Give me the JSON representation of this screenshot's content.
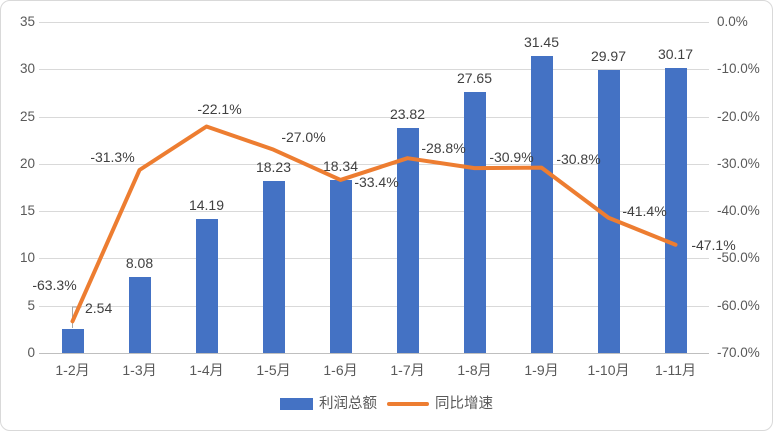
{
  "chart_data": {
    "type": "bar",
    "combo": "bar+line",
    "title": "",
    "categories": [
      "1-2月",
      "1-3月",
      "1-4月",
      "1-5月",
      "1-6月",
      "1-7月",
      "1-8月",
      "1-9月",
      "1-10月",
      "1-11月"
    ],
    "series": [
      {
        "name": "利润总额",
        "type": "bar",
        "axis": "left",
        "color": "#4472C4",
        "values": [
          2.54,
          8.08,
          14.19,
          18.23,
          18.34,
          23.82,
          27.65,
          31.45,
          29.97,
          30.17
        ],
        "labels": [
          "2.54",
          "8.08",
          "14.19",
          "18.23",
          "18.34",
          "23.82",
          "27.65",
          "31.45",
          "29.97",
          "30.17"
        ]
      },
      {
        "name": "同比增速",
        "type": "line",
        "axis": "right",
        "color": "#ED7D31",
        "values": [
          -63.3,
          -31.3,
          -22.1,
          -27.0,
          -33.4,
          -28.8,
          -30.9,
          -30.8,
          -41.4,
          -47.1
        ],
        "labels": [
          "-63.3%",
          "-31.3%",
          "-22.1%",
          "-27.0%",
          "-33.4%",
          "-28.8%",
          "-30.9%",
          "-30.8%",
          "-41.4%",
          "-47.1%"
        ]
      }
    ],
    "left_axis": {
      "min": 0,
      "max": 35,
      "step": 5,
      "ticks": [
        "0",
        "5",
        "10",
        "15",
        "20",
        "25",
        "30",
        "35"
      ]
    },
    "right_axis": {
      "min": -70,
      "max": 0,
      "step": 10,
      "ticks": [
        "0.0%",
        "-10.0%",
        "-20.0%",
        "-30.0%",
        "-40.0%",
        "-50.0%",
        "-60.0%",
        "-70.0%"
      ]
    },
    "grid": true,
    "legend_position": "bottom",
    "legend": [
      "利润总额",
      "同比增速"
    ]
  },
  "colors": {
    "bar": "#4472C4",
    "line": "#ED7D31",
    "grid": "#D9D9D9",
    "axis_line": "#BFBFBF",
    "axis_text": "#595959",
    "label_text": "#404040",
    "border": "#D9D9D9",
    "leader": "#A6A6A6"
  }
}
